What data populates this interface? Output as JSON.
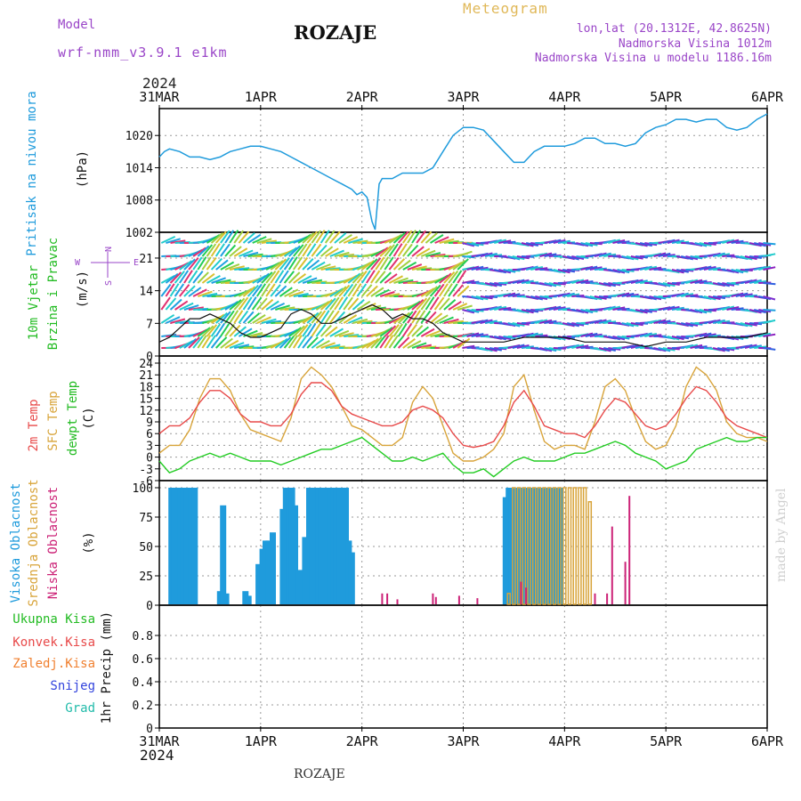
{
  "header": {
    "model_label": "Model",
    "model_name": "wrf-nmm_v3.9.1 e1km",
    "title": "ROZAJE",
    "meteogram_label": "Meteogram",
    "coords": "lon,lat (20.1312E, 42.8625N)",
    "elevation": "Nadmorska Visina 1012m",
    "model_elevation": "Nadmorska Visina u modelu 1186.16m",
    "year": "2024"
  },
  "footer": {
    "year": "2024",
    "station": "ROZAJE",
    "credit": "made by Angel"
  },
  "colors": {
    "pressure": "#1f9bdc",
    "wind_label": "#22bb22",
    "temp2m": "#e84a4a",
    "sfc": "#d8a43a",
    "dewpt": "#22cc22",
    "cloud_high": "#1f9bdc",
    "cloud_mid": "#d8a43a",
    "cloud_low": "#cc2277",
    "purple": "#9a46c8"
  },
  "axis_labels": {
    "pressure_name": "Pritisak na nivou mora",
    "pressure_unit": "(hPa)",
    "wind_name1": "10m Vjetar",
    "wind_name2": "Brzina i Pravac",
    "wind_unit": "(m/s)",
    "compass_n": "N",
    "compass_w": "W",
    "compass_e": "E",
    "compass_s": "S",
    "temp_2m": "2m Temp",
    "temp_sfc": "SFC Temp",
    "temp_dew": "dewpt Temp",
    "temp_unit": "(C)",
    "cloud_high": "Visoka Oblacnost",
    "cloud_mid": "Srednja Oblacnost",
    "cloud_low": "Niska Oblacnost",
    "cloud_unit": "(%)",
    "precip_total": "Ukupna Kisa",
    "precip_conv": "Konvek.Kisa",
    "precip_frozen": "Zaledj.Kisa",
    "precip_snow": "Snijeg",
    "precip_grad": "Grad",
    "precip_unit": "1hr Precip (mm)"
  },
  "chart_data": [
    {
      "type": "line",
      "title": "Pritisak na nivou mora",
      "ylabel": "(hPa)",
      "x_ticks": [
        "31MAR",
        "1APR",
        "2APR",
        "3APR",
        "4APR",
        "5APR",
        "6APR"
      ],
      "ylim": [
        1002,
        1025
      ],
      "y_ticks": [
        1002,
        1008,
        1014,
        1020
      ],
      "series": [
        {
          "name": "Pritisak na nivou mora",
          "x": [
            0,
            0.05,
            0.1,
            0.2,
            0.3,
            0.4,
            0.5,
            0.6,
            0.7,
            0.8,
            0.9,
            1.0,
            1.1,
            1.2,
            1.3,
            1.4,
            1.5,
            1.6,
            1.7,
            1.8,
            1.9,
            1.95,
            2.0,
            2.05,
            2.1,
            2.13,
            2.17,
            2.2,
            2.3,
            2.4,
            2.5,
            2.6,
            2.7,
            2.8,
            2.9,
            3.0,
            3.1,
            3.2,
            3.3,
            3.4,
            3.5,
            3.6,
            3.7,
            3.8,
            3.9,
            4.0,
            4.1,
            4.2,
            4.3,
            4.4,
            4.5,
            4.6,
            4.7,
            4.8,
            4.9,
            5.0,
            5.1,
            5.2,
            5.3,
            5.4,
            5.5,
            5.6,
            5.7,
            5.8,
            5.9,
            6.0
          ],
          "y": [
            1016,
            1017,
            1017.5,
            1017,
            1016,
            1016,
            1015.5,
            1016,
            1017,
            1017.5,
            1018,
            1018,
            1017.5,
            1017,
            1016,
            1015,
            1014,
            1013,
            1012,
            1011,
            1010,
            1009,
            1009.5,
            1008.5,
            1004,
            1002.5,
            1011,
            1012,
            1012,
            1013,
            1013,
            1013,
            1014,
            1017,
            1020,
            1021.5,
            1021.5,
            1021,
            1019,
            1017,
            1015,
            1015,
            1017,
            1018,
            1018,
            1018,
            1018.5,
            1019.5,
            1019.5,
            1018.5,
            1018.5,
            1018,
            1018.5,
            1020.5,
            1021.5,
            1022,
            1023,
            1023,
            1022.5,
            1023,
            1023,
            1021.5,
            1021,
            1021.5,
            1023,
            1024
          ]
        }
      ]
    },
    {
      "type": "line",
      "title": "10m Vjetar Brzina i Pravac",
      "ylabel": "(m/s)",
      "ylim": [
        0,
        25
      ],
      "y_ticks": [
        0,
        7,
        14,
        21
      ],
      "series": [
        {
          "name": "10m Vjetar",
          "x": [
            0,
            0.1,
            0.2,
            0.3,
            0.4,
            0.5,
            0.6,
            0.7,
            0.8,
            0.9,
            1.0,
            1.1,
            1.2,
            1.3,
            1.4,
            1.5,
            1.6,
            1.7,
            1.8,
            1.9,
            2.0,
            2.1,
            2.2,
            2.3,
            2.4,
            2.5,
            2.6,
            2.7,
            2.8,
            2.9,
            3.0,
            3.2,
            3.4,
            3.6,
            3.8,
            4.0,
            4.2,
            4.4,
            4.6,
            4.8,
            5.0,
            5.2,
            5.4,
            5.6,
            5.8,
            6.0
          ],
          "y": [
            3,
            4,
            6,
            8,
            8,
            9,
            8,
            7,
            5,
            4,
            4,
            5,
            6,
            9,
            10,
            9,
            7,
            7,
            8,
            9,
            10,
            11,
            10,
            8,
            9,
            8,
            8,
            7,
            5,
            4,
            3,
            3,
            3,
            4,
            4,
            4,
            3,
            3,
            3,
            2,
            3,
            3,
            4,
            4,
            4,
            5
          ]
        }
      ]
    },
    {
      "type": "line",
      "title": "2m Temp SFC Temp dewpt Temp",
      "ylabel": "(C)",
      "ylim": [
        -6,
        24
      ],
      "y_ticks": [
        -6,
        -3,
        0,
        3,
        6,
        9,
        12,
        15,
        18,
        21,
        24
      ],
      "series": [
        {
          "name": "2m Temp",
          "x": [
            0,
            0.1,
            0.2,
            0.3,
            0.4,
            0.5,
            0.6,
            0.7,
            0.8,
            0.9,
            1.0,
            1.1,
            1.2,
            1.3,
            1.4,
            1.5,
            1.6,
            1.7,
            1.8,
            1.9,
            2.0,
            2.1,
            2.2,
            2.3,
            2.4,
            2.5,
            2.6,
            2.7,
            2.8,
            2.9,
            3.0,
            3.1,
            3.2,
            3.3,
            3.4,
            3.5,
            3.6,
            3.7,
            3.8,
            3.9,
            4.0,
            4.1,
            4.2,
            4.3,
            4.4,
            4.5,
            4.6,
            4.7,
            4.8,
            4.9,
            5.0,
            5.1,
            5.2,
            5.3,
            5.4,
            5.5,
            5.6,
            5.7,
            5.8,
            5.9,
            6.0
          ],
          "y": [
            6,
            8,
            8,
            10,
            14,
            17,
            17,
            15,
            11,
            9,
            9,
            8,
            8,
            11,
            16,
            19,
            19,
            17,
            13,
            11,
            10,
            9,
            8,
            8,
            9,
            12,
            13,
            12,
            10,
            6,
            3,
            2.5,
            3,
            4,
            8,
            14,
            17,
            13,
            8,
            7,
            6,
            6,
            5,
            8,
            12,
            15,
            14,
            11,
            8,
            7,
            8,
            11,
            15,
            18,
            17,
            14,
            10,
            8,
            7,
            6,
            5
          ]
        },
        {
          "name": "SFC Temp",
          "x": [
            0,
            0.1,
            0.2,
            0.3,
            0.4,
            0.5,
            0.6,
            0.7,
            0.8,
            0.9,
            1.0,
            1.1,
            1.2,
            1.3,
            1.4,
            1.5,
            1.6,
            1.7,
            1.8,
            1.9,
            2.0,
            2.1,
            2.2,
            2.3,
            2.4,
            2.5,
            2.6,
            2.7,
            2.8,
            2.9,
            3.0,
            3.1,
            3.2,
            3.3,
            3.4,
            3.5,
            3.6,
            3.7,
            3.8,
            3.9,
            4.0,
            4.1,
            4.2,
            4.3,
            4.4,
            4.5,
            4.6,
            4.7,
            4.8,
            4.9,
            5.0,
            5.1,
            5.2,
            5.3,
            5.4,
            5.5,
            5.6,
            5.7,
            5.8,
            5.9,
            6.0
          ],
          "y": [
            1,
            3,
            3,
            7,
            15,
            20,
            20,
            17,
            11,
            7,
            6,
            5,
            4,
            10,
            20,
            23,
            21,
            18,
            13,
            8,
            7,
            5,
            3,
            3,
            5,
            14,
            18,
            15,
            8,
            1,
            -1,
            -1,
            0,
            2,
            6,
            18,
            21,
            12,
            4,
            2,
            3,
            3,
            2,
            9,
            18,
            20,
            17,
            10,
            4,
            2,
            3,
            8,
            18,
            23,
            21,
            17,
            9,
            6,
            5,
            5,
            4
          ]
        },
        {
          "name": "dewpt Temp",
          "x": [
            0,
            0.1,
            0.2,
            0.3,
            0.4,
            0.5,
            0.6,
            0.7,
            0.8,
            0.9,
            1.0,
            1.1,
            1.2,
            1.3,
            1.4,
            1.5,
            1.6,
            1.7,
            1.8,
            1.9,
            2.0,
            2.1,
            2.2,
            2.3,
            2.4,
            2.5,
            2.6,
            2.7,
            2.8,
            2.9,
            3.0,
            3.1,
            3.2,
            3.3,
            3.4,
            3.5,
            3.6,
            3.7,
            3.8,
            3.9,
            4.0,
            4.1,
            4.2,
            4.3,
            4.4,
            4.5,
            4.6,
            4.7,
            4.8,
            4.9,
            5.0,
            5.1,
            5.2,
            5.3,
            5.4,
            5.5,
            5.6,
            5.7,
            5.8,
            5.9,
            6.0
          ],
          "y": [
            -1,
            -4,
            -3,
            -1,
            0,
            1,
            0,
            1,
            0,
            -1,
            -1,
            -1,
            -2,
            -1,
            0,
            1,
            2,
            2,
            3,
            4,
            5,
            3,
            1,
            -1,
            -1,
            0,
            -1,
            0,
            1,
            -2,
            -4,
            -4,
            -3,
            -5,
            -3,
            -1,
            0,
            -1,
            -1,
            -1,
            0,
            1,
            1,
            2,
            3,
            4,
            3,
            1,
            0,
            -1,
            -3,
            -2,
            -1,
            2,
            3,
            4,
            5,
            4,
            4,
            5,
            5
          ]
        }
      ]
    },
    {
      "type": "bar",
      "title": "Visoka / Srednja / Niska Oblacnost",
      "ylabel": "(%)",
      "ylim": [
        0,
        100
      ],
      "y_ticks": [
        0,
        25,
        50,
        75,
        100
      ],
      "series": [
        {
          "name": "Visoka Oblacnost",
          "x": [
            0.12,
            0.15,
            0.18,
            0.21,
            0.24,
            0.27,
            0.32,
            0.35,
            0.6,
            0.63,
            0.66,
            0.85,
            0.88,
            0.98,
            1.02,
            1.05,
            1.08,
            1.12,
            1.22,
            1.25,
            1.28,
            1.31,
            1.34,
            1.38,
            1.44,
            1.48,
            1.51,
            1.54,
            1.57,
            1.6,
            1.63,
            1.66,
            1.69,
            1.72,
            1.75,
            1.78,
            1.81,
            1.84,
            1.87,
            1.9,
            3.42,
            3.45,
            3.48,
            3.51,
            3.54,
            3.57,
            3.6,
            3.63,
            3.66,
            3.69,
            3.72,
            3.75,
            3.78,
            3.81,
            3.84,
            3.87,
            3.9,
            3.93,
            3.96
          ],
          "y": [
            100,
            100,
            100,
            100,
            100,
            100,
            100,
            100,
            12,
            85,
            10,
            12,
            8,
            35,
            48,
            55,
            55,
            62,
            82,
            100,
            100,
            100,
            85,
            30,
            58,
            100,
            100,
            100,
            100,
            100,
            100,
            100,
            100,
            100,
            100,
            100,
            100,
            100,
            55,
            45,
            92,
            100,
            100,
            100,
            100,
            100,
            100,
            100,
            100,
            100,
            100,
            100,
            100,
            100,
            100,
            100,
            100,
            100,
            100
          ]
        },
        {
          "name": "Srednja Oblacnost",
          "x": [
            3.45,
            3.5,
            3.55,
            3.6,
            3.65,
            3.7,
            3.75,
            3.8,
            3.85,
            3.9,
            3.95,
            4.0,
            4.05,
            4.1,
            4.15,
            4.2,
            4.25
          ],
          "y": [
            10,
            100,
            100,
            100,
            100,
            100,
            100,
            100,
            100,
            100,
            100,
            100,
            100,
            100,
            100,
            100,
            88
          ]
        },
        {
          "name": "Niska Oblacnost",
          "x": [
            2.2,
            2.25,
            2.35,
            2.7,
            2.73,
            2.96,
            3.14,
            3.57,
            3.62,
            4.3,
            4.42,
            4.47,
            4.6,
            4.64
          ],
          "y": [
            10,
            10,
            5,
            10,
            7,
            8,
            6,
            20,
            15,
            10,
            10,
            67,
            37,
            93
          ]
        }
      ]
    },
    {
      "type": "line",
      "title": "1hr Precip",
      "ylabel": "1hr Precip (mm)",
      "ylim": [
        0,
        1
      ],
      "y_ticks": [
        0,
        0.2,
        0.4,
        0.6,
        0.8
      ],
      "series": []
    }
  ]
}
